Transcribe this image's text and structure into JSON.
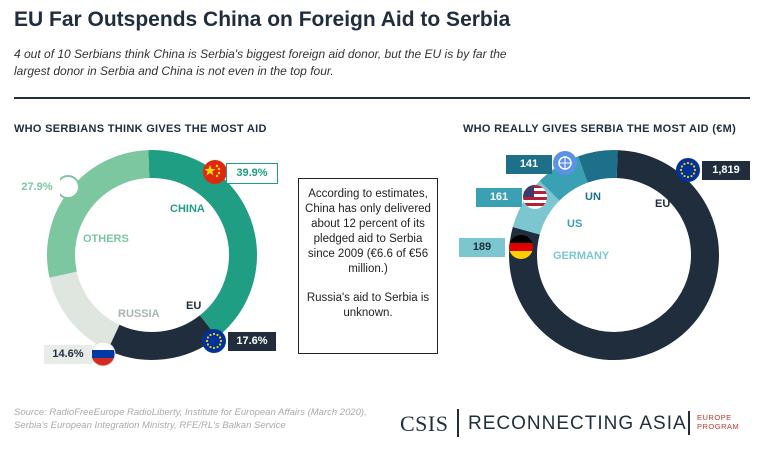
{
  "header": {
    "title": "EU Far Outspends China on Foreign Aid to Serbia",
    "subtitle": "4 out of 10 Serbians think China is Serbia's biggest foreign aid donor, but the EU is by far the largest donor in Serbia and China is not even in the top four."
  },
  "chart_data": [
    {
      "type": "pie",
      "title": "WHO SERBIANS THINK GIVES THE MOST AID",
      "categories": [
        "CHINA",
        "EU",
        "RUSSIA",
        "OTHERS"
      ],
      "values": [
        39.9,
        17.6,
        14.6,
        27.9
      ],
      "value_labels": [
        "39.9%",
        "17.6%",
        "14.6%",
        "27.9%"
      ],
      "colors": [
        "#1f9e84",
        "#1f2d3d",
        "#dfe6e0",
        "#7cc6a0"
      ]
    },
    {
      "type": "pie",
      "title": "WHO REALLY GIVES SERBIA THE MOST AID (€M)",
      "categories": [
        "EU",
        "GERMANY",
        "US",
        "UN"
      ],
      "values": [
        1819,
        189,
        161,
        141
      ],
      "value_labels": [
        "1,819",
        "189",
        "161",
        "141"
      ],
      "colors": [
        "#1f2d3d",
        "#7cc6cf",
        "#3aa0b3",
        "#1d6f8a"
      ]
    }
  ],
  "note": {
    "paragraph1": "According to estimates, China has only delivered about 12 percent of its pledged aid to Serbia since 2009 (€6.6 of €56 million.)",
    "paragraph2": "Russia's aid to Serbia is unknown."
  },
  "footer": {
    "source": "Source: RadioFreeEurope RadioLiberty, Institute for European Affairs (March 2020), Serbia's European Integration Ministry, RFE/RL's Balkan Service",
    "brand_csis": "CSIS",
    "brand_program": "RECONNECTING ASIA",
    "brand_europe_line1": "EUROPE",
    "brand_europe_line2": "PROGRAM"
  },
  "icons": {
    "china": "china-flag-icon",
    "eu": "eu-flag-icon",
    "russia": "russia-flag-icon",
    "others": "circle-icon",
    "un": "un-emblem-icon",
    "us": "us-flag-icon",
    "germany": "germany-flag-icon"
  }
}
